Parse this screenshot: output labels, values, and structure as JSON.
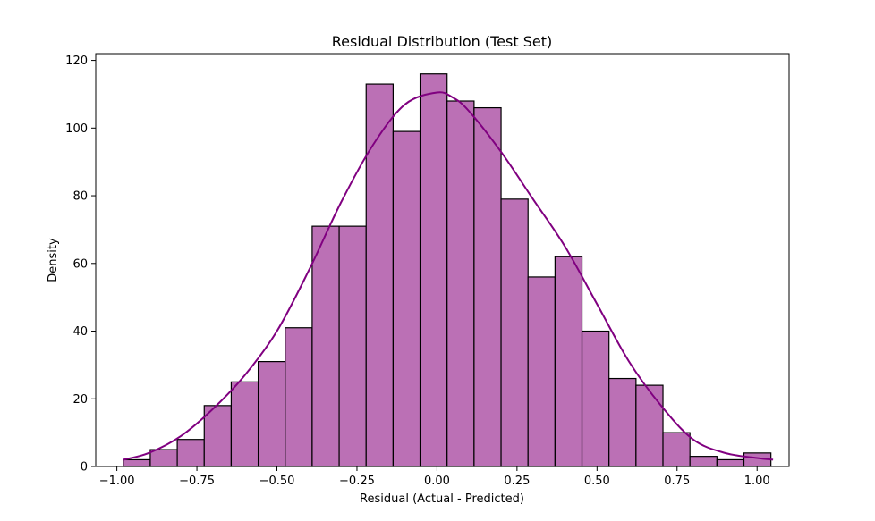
{
  "chart_data": {
    "type": "bar",
    "subtype": "histogram",
    "title": "Residual Distribution (Test Set)",
    "xlabel": "Residual (Actual - Predicted)",
    "ylabel": "Density",
    "xlim": [
      -1.066,
      1.1
    ],
    "ylim": [
      0,
      122
    ],
    "x_ticks": [
      -1.0,
      -0.75,
      -0.5,
      -0.25,
      0.0,
      0.25,
      0.5,
      0.75,
      1.0
    ],
    "x_tick_labels": [
      "−1.00",
      "−0.75",
      "−0.50",
      "−0.25",
      "0.00",
      "0.25",
      "0.50",
      "0.75",
      "1.00"
    ],
    "y_ticks": [
      0,
      20,
      40,
      60,
      80,
      100,
      120
    ],
    "y_tick_labels": [
      "0",
      "20",
      "40",
      "60",
      "80",
      "100",
      "120"
    ],
    "bin_start": -0.98,
    "bin_width": 0.0843,
    "values": [
      2,
      5,
      8,
      18,
      25,
      31,
      41,
      71,
      71,
      113,
      99,
      116,
      108,
      106,
      79,
      56,
      62,
      40,
      26,
      24,
      10,
      3,
      2,
      4
    ],
    "kde": {
      "x": [
        -0.98,
        -0.9,
        -0.8,
        -0.7,
        -0.6,
        -0.5,
        -0.4,
        -0.3,
        -0.2,
        -0.1,
        0.0,
        0.05,
        0.1,
        0.2,
        0.3,
        0.4,
        0.5,
        0.6,
        0.7,
        0.8,
        0.9,
        1.0,
        1.05
      ],
      "y": [
        2,
        4,
        9,
        17,
        27,
        40,
        58,
        78,
        95,
        107,
        110.5,
        109,
        105,
        93,
        79,
        65,
        48,
        31,
        18,
        8,
        4,
        2.5,
        2
      ]
    },
    "bar_color": "#bb70b5",
    "edge_color": "#000000",
    "kde_color": "#800080",
    "grid": false,
    "legend": "none"
  }
}
